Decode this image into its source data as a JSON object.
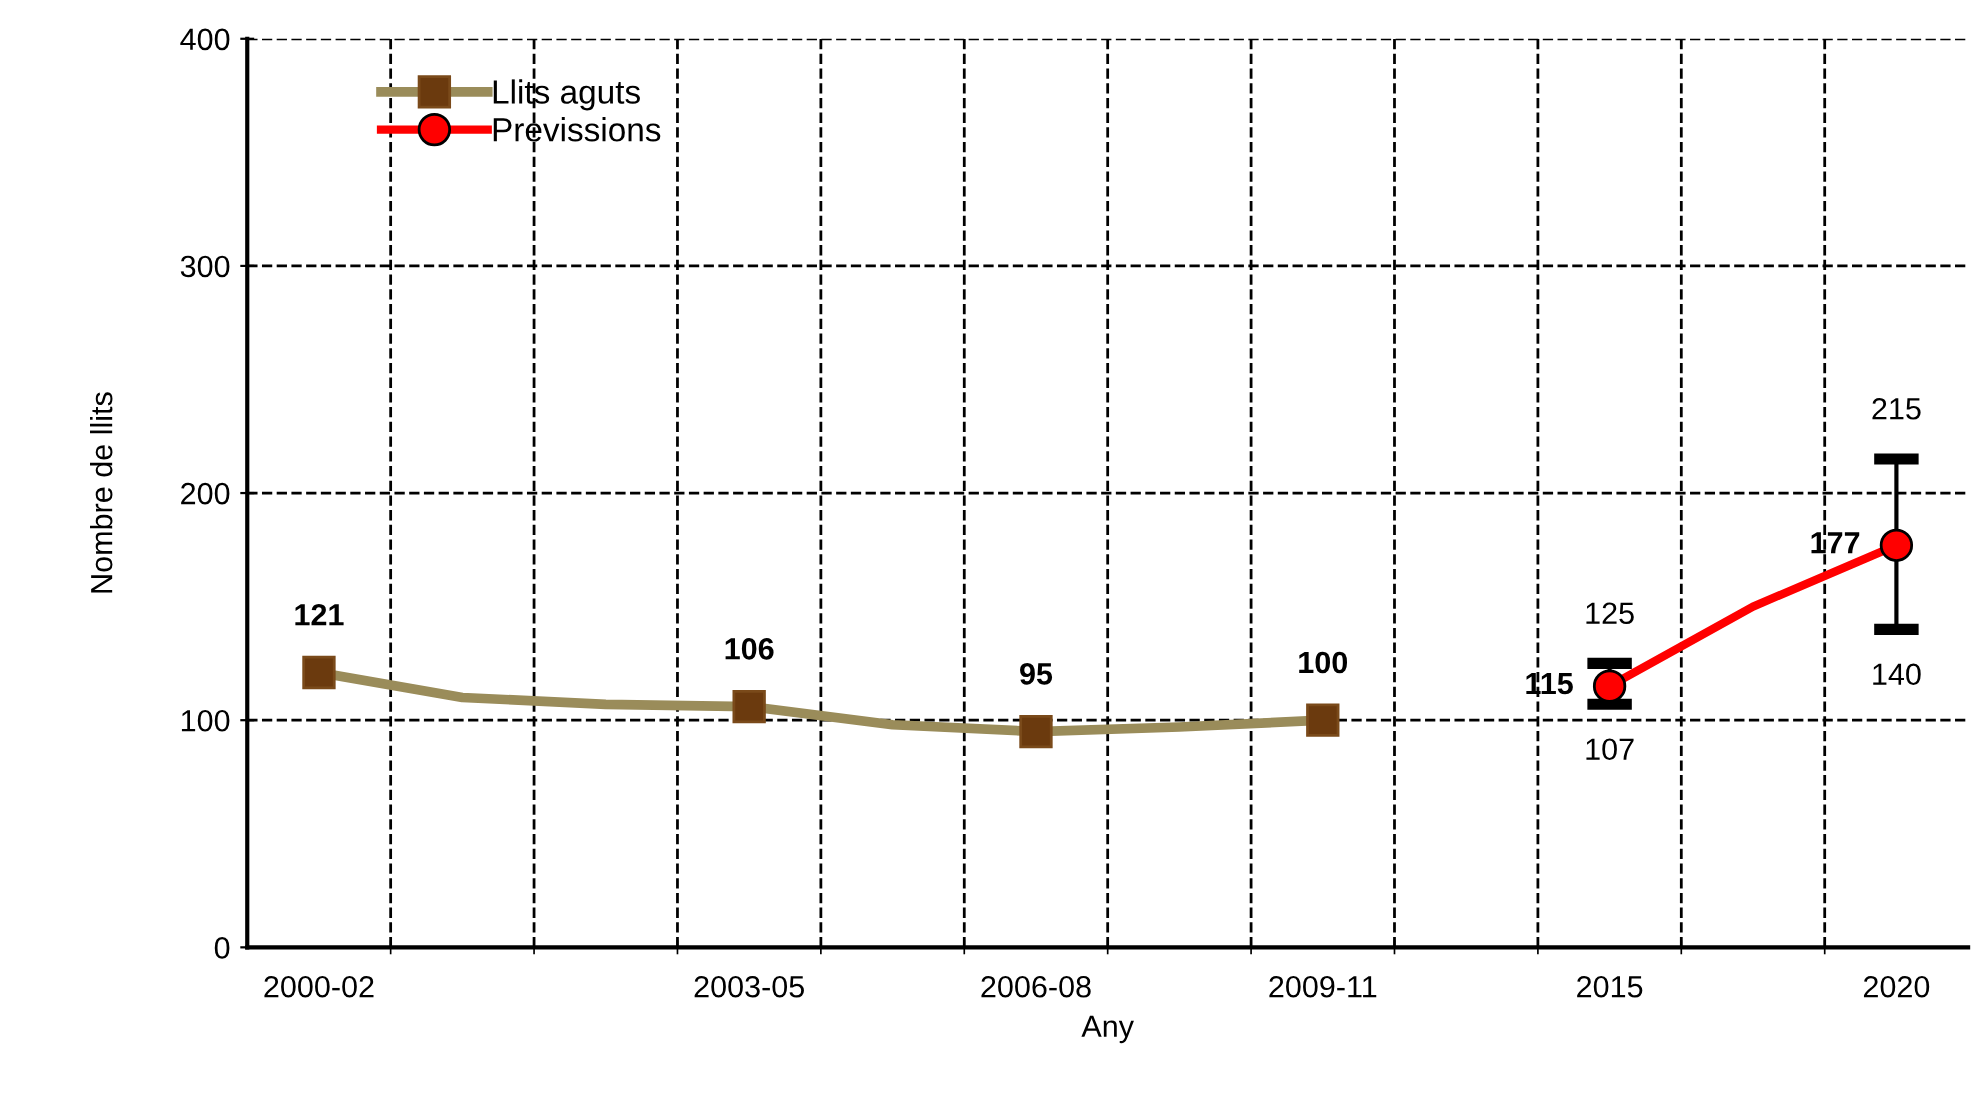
{
  "chart_data": {
    "type": "line",
    "xlabel": "Any",
    "ylabel": "Nombre de llits",
    "categories": [
      "2000-02",
      null,
      null,
      "2003-05",
      null,
      "2006-08",
      null,
      "2009-11",
      null,
      "2015",
      null,
      "2020"
    ],
    "series": [
      {
        "name": "Llits aguts",
        "color": "#9a8c5a",
        "marker": "square",
        "values": [
          121,
          110,
          107,
          106,
          98,
          95,
          97,
          100,
          null,
          null,
          null,
          null
        ],
        "value_labels": [
          "121",
          null,
          null,
          "106",
          null,
          "95",
          null,
          "100",
          null,
          null,
          null,
          null
        ]
      },
      {
        "name": "Previssions",
        "color": "#ff0000",
        "marker": "circle",
        "values": [
          null,
          null,
          null,
          null,
          null,
          null,
          null,
          null,
          null,
          115,
          150,
          177
        ],
        "value_labels": [
          null,
          null,
          null,
          null,
          null,
          null,
          null,
          null,
          null,
          "115",
          null,
          "177"
        ],
        "errors": [
          null,
          null,
          null,
          null,
          null,
          null,
          null,
          null,
          null,
          [
            107,
            125
          ],
          null,
          [
            140,
            215
          ]
        ]
      }
    ],
    "annotations": [
      {
        "text": "125",
        "x": "2015",
        "y": 125
      },
      {
        "text": "107",
        "x": "2015",
        "y": 107
      },
      {
        "text": "215",
        "x": "2020",
        "y": 215
      },
      {
        "text": "140",
        "x": "2020",
        "y": 140
      }
    ],
    "ylim": [
      0,
      400
    ],
    "yticks": [
      0,
      100,
      200,
      300,
      400
    ],
    "grid": true,
    "legend": "top left",
    "line_style": "solid"
  }
}
